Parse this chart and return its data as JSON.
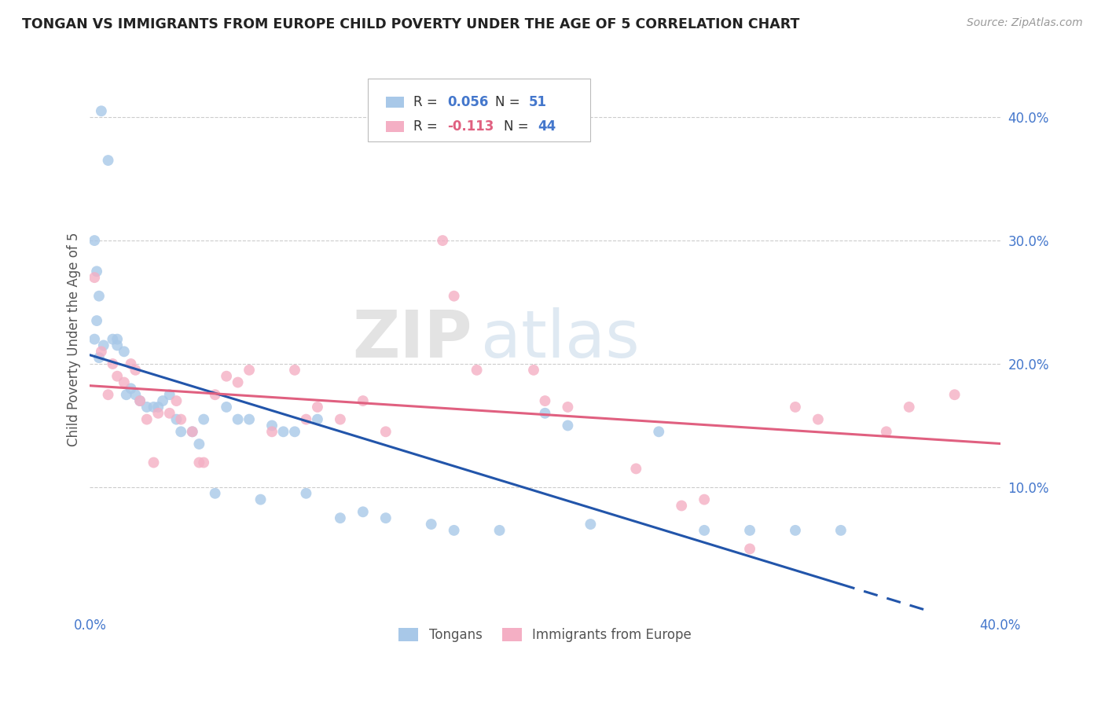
{
  "title": "TONGAN VS IMMIGRANTS FROM EUROPE CHILD POVERTY UNDER THE AGE OF 5 CORRELATION CHART",
  "source": "Source: ZipAtlas.com",
  "ylabel": "Child Poverty Under the Age of 5",
  "xlim": [
    0.0,
    0.4
  ],
  "ylim": [
    0.0,
    0.44
  ],
  "tongan_R": 0.056,
  "tongan_N": 51,
  "europe_R": -0.113,
  "europe_N": 44,
  "tongan_color": "#a8c8e8",
  "europe_color": "#f4afc4",
  "tongan_line_color": "#2255aa",
  "europe_line_color": "#e06080",
  "background_color": "#ffffff",
  "grid_color": "#cccccc",
  "legend_label_1": "Tongans",
  "legend_label_2": "Immigrants from Europe",
  "watermark_zip": "ZIP",
  "watermark_atlas": "atlas",
  "marker_size": 100,
  "tongan_x": [
    0.005,
    0.008,
    0.002,
    0.003,
    0.004,
    0.003,
    0.002,
    0.006,
    0.004,
    0.01,
    0.012,
    0.012,
    0.015,
    0.018,
    0.016,
    0.02,
    0.022,
    0.025,
    0.028,
    0.03,
    0.032,
    0.035,
    0.038,
    0.04,
    0.045,
    0.048,
    0.05,
    0.055,
    0.06,
    0.065,
    0.07,
    0.075,
    0.08,
    0.085,
    0.09,
    0.095,
    0.1,
    0.11,
    0.12,
    0.13,
    0.15,
    0.16,
    0.18,
    0.2,
    0.21,
    0.22,
    0.25,
    0.27,
    0.29,
    0.31,
    0.33
  ],
  "tongan_y": [
    0.405,
    0.365,
    0.3,
    0.275,
    0.255,
    0.235,
    0.22,
    0.215,
    0.205,
    0.22,
    0.22,
    0.215,
    0.21,
    0.18,
    0.175,
    0.175,
    0.17,
    0.165,
    0.165,
    0.165,
    0.17,
    0.175,
    0.155,
    0.145,
    0.145,
    0.135,
    0.155,
    0.095,
    0.165,
    0.155,
    0.155,
    0.09,
    0.15,
    0.145,
    0.145,
    0.095,
    0.155,
    0.075,
    0.08,
    0.075,
    0.07,
    0.065,
    0.065,
    0.16,
    0.15,
    0.07,
    0.145,
    0.065,
    0.065,
    0.065,
    0.065
  ],
  "europe_x": [
    0.002,
    0.005,
    0.008,
    0.01,
    0.012,
    0.015,
    0.018,
    0.02,
    0.022,
    0.025,
    0.028,
    0.03,
    0.035,
    0.038,
    0.04,
    0.045,
    0.048,
    0.05,
    0.055,
    0.06,
    0.065,
    0.07,
    0.08,
    0.09,
    0.095,
    0.1,
    0.11,
    0.12,
    0.13,
    0.155,
    0.16,
    0.17,
    0.195,
    0.2,
    0.21,
    0.24,
    0.26,
    0.27,
    0.29,
    0.31,
    0.32,
    0.35,
    0.36,
    0.38
  ],
  "europe_y": [
    0.27,
    0.21,
    0.175,
    0.2,
    0.19,
    0.185,
    0.2,
    0.195,
    0.17,
    0.155,
    0.12,
    0.16,
    0.16,
    0.17,
    0.155,
    0.145,
    0.12,
    0.12,
    0.175,
    0.19,
    0.185,
    0.195,
    0.145,
    0.195,
    0.155,
    0.165,
    0.155,
    0.17,
    0.145,
    0.3,
    0.255,
    0.195,
    0.195,
    0.17,
    0.165,
    0.115,
    0.085,
    0.09,
    0.05,
    0.165,
    0.155,
    0.145,
    0.165,
    0.175
  ]
}
